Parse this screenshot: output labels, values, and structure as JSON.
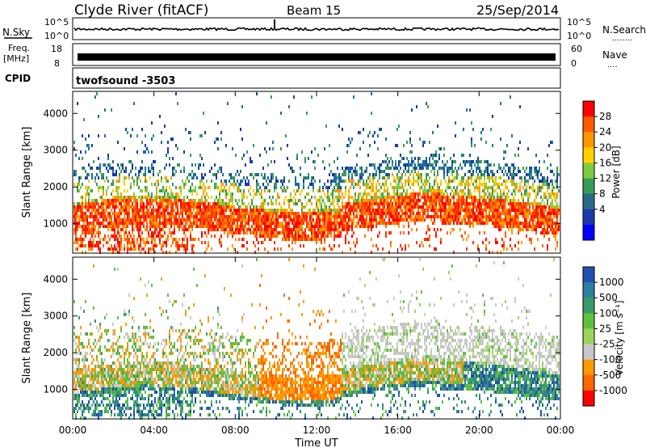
{
  "header": {
    "station": "Clyde River (fitACF)",
    "beam": "Beam 15",
    "date": "25/Sep/2014"
  },
  "noise_panel": {
    "left_label": "N.Sky",
    "right_label": "N.Search",
    "right_dots": "........",
    "ticks": [
      "10^5",
      "10^0"
    ]
  },
  "freq_panel": {
    "left_label_1": "Freq.",
    "left_label_2": "[MHz]",
    "left_ticks": [
      "18",
      "8"
    ],
    "right_label": "Nave",
    "right_dots": "....",
    "right_ticks": [
      "60",
      "0"
    ]
  },
  "cpid": {
    "label": "CPID",
    "value": "twofsound -3503"
  },
  "chart_data": [
    {
      "type": "heatmap",
      "quantity": "power",
      "ylabel": "Slant Range [km]",
      "ylim": [
        200,
        4600
      ],
      "yticks": [
        "1000",
        "2000",
        "3000",
        "4000"
      ],
      "xlim": [
        "00:00",
        "24:00"
      ],
      "colorbar": {
        "label": "Power [dB]",
        "ticks": [
          "28",
          "24",
          "20",
          "16",
          "12",
          "8",
          "4"
        ],
        "colors": [
          "#ff0000",
          "#ff5a00",
          "#ff9600",
          "#ffd200",
          "#7fcc3f",
          "#3a9a58",
          "#2a6a86",
          "#1a3aa8",
          "#0000ff"
        ]
      }
    },
    {
      "type": "heatmap",
      "quantity": "velocity",
      "ylabel": "Slant Range [km]",
      "ylim": [
        200,
        4600
      ],
      "yticks": [
        "1000",
        "2000",
        "3000",
        "4000"
      ],
      "xlim": [
        "00:00",
        "24:00"
      ],
      "colorbar": {
        "label": "Velocity [m s⁻¹]",
        "ticks": [
          "1000",
          "500",
          "100",
          "25",
          "-25",
          "-100",
          "-500",
          "-1000"
        ],
        "colors": [
          "#2050b0",
          "#2f7fa0",
          "#3a9a6a",
          "#5fbf3f",
          "#9ad65a",
          "#c8c8c8",
          "#ff9a00",
          "#ff6600",
          "#ff0000"
        ]
      }
    }
  ],
  "x_axis": {
    "ticks": [
      "00:00",
      "04:00",
      "08:00",
      "12:00",
      "16:00",
      "20:00",
      "00:00"
    ],
    "label": "Time UT"
  }
}
